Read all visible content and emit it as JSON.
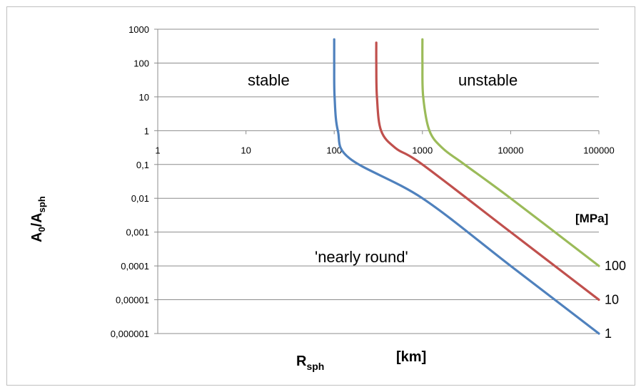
{
  "chart_data": {
    "type": "line",
    "x_scale": "log",
    "y_scale": "log",
    "xlim": [
      1,
      100000
    ],
    "ylim": [
      1e-06,
      1000
    ],
    "x_tick_labels": [
      "1",
      "10",
      "100",
      "1000",
      "10000",
      "100000"
    ],
    "y_tick_labels": [
      "1000",
      "100",
      "10",
      "1",
      "0,1",
      "0,01",
      "0,001",
      "0,0001",
      "0,00001",
      "0,000001"
    ],
    "xlabel_main": "R",
    "xlabel_sub": "sph",
    "xlabel_unit": "[km]",
    "ylabel_a": "A",
    "ylabel_a_sub": "0",
    "ylabel_slash": "/A",
    "ylabel_b_sub": "sph",
    "series_unit": "[MPa]",
    "grid": "horizontal",
    "annotations": [
      "stable",
      "unstable",
      "'nearly round'"
    ],
    "series": [
      {
        "name": "1",
        "color": "#4f81bd",
        "points": [
          [
            100,
            500
          ],
          [
            100,
            100
          ],
          [
            101,
            10
          ],
          [
            110,
            1
          ],
          [
            150,
            0.15
          ],
          [
            1000,
            0.01
          ],
          [
            10000,
            0.0001
          ],
          [
            100000,
            1e-06
          ]
        ]
      },
      {
        "name": "10",
        "color": "#c0504d",
        "points": [
          [
            300,
            400
          ],
          [
            300,
            100
          ],
          [
            305,
            10
          ],
          [
            340,
            1
          ],
          [
            500,
            0.3
          ],
          [
            1000,
            0.1
          ],
          [
            10000,
            0.001
          ],
          [
            100000,
            1e-05
          ]
        ]
      },
      {
        "name": "100",
        "color": "#9bbb59",
        "points": [
          [
            1000,
            500
          ],
          [
            1000,
            100
          ],
          [
            1020,
            10
          ],
          [
            1200,
            1
          ],
          [
            1700,
            0.3
          ],
          [
            3000,
            0.1
          ],
          [
            10000,
            0.01
          ],
          [
            100000,
            0.0001
          ]
        ]
      }
    ]
  }
}
